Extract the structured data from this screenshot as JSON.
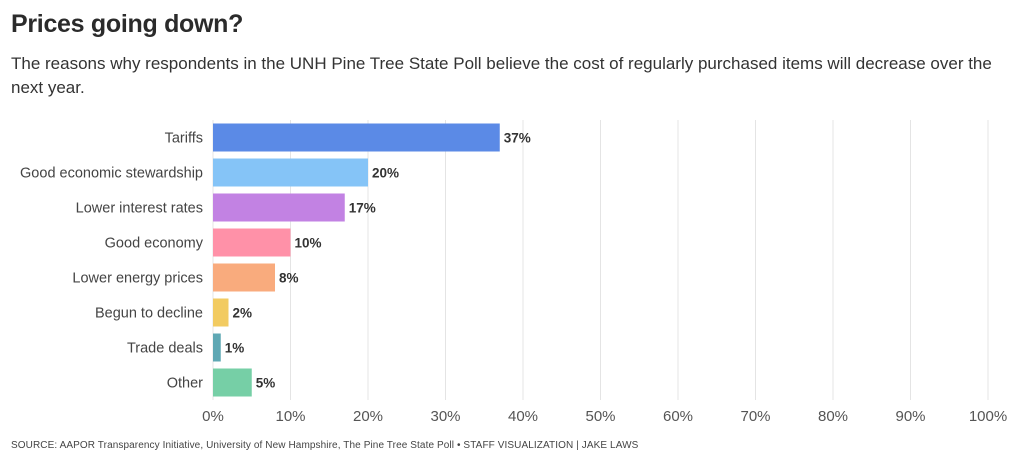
{
  "header": {
    "title": "Prices going down?",
    "subtitle": "The reasons why respondents in the UNH Pine Tree State Poll believe the cost of regularly purchased items will decrease over the next year."
  },
  "chart_data": {
    "type": "bar",
    "orientation": "horizontal",
    "categories": [
      "Tariffs",
      "Good economic stewardship",
      "Lower interest rates",
      "Good economy",
      "Lower energy prices",
      "Begun to decline",
      "Trade deals",
      "Other"
    ],
    "values": [
      37,
      20,
      17,
      10,
      8,
      2,
      1,
      5
    ],
    "value_labels": [
      "37%",
      "20%",
      "17%",
      "10%",
      "8%",
      "2%",
      "1%",
      "5%"
    ],
    "colors": [
      "#5b8ae6",
      "#85c4f7",
      "#c282e3",
      "#ff91a8",
      "#f9ab7d",
      "#f2cb61",
      "#5fa8b4",
      "#76cfa6"
    ],
    "xlim": [
      0,
      100
    ],
    "xticks": [
      "0%",
      "10%",
      "20%",
      "30%",
      "40%",
      "50%",
      "60%",
      "70%",
      "80%",
      "90%",
      "100%"
    ],
    "grid": true,
    "xlabel": "",
    "ylabel": ""
  },
  "footer": {
    "source": "SOURCE: AAPOR Transparency Initiative, University of New Hampshire, The Pine Tree State Poll • STAFF VISUALIZATION | JAKE LAWS"
  }
}
